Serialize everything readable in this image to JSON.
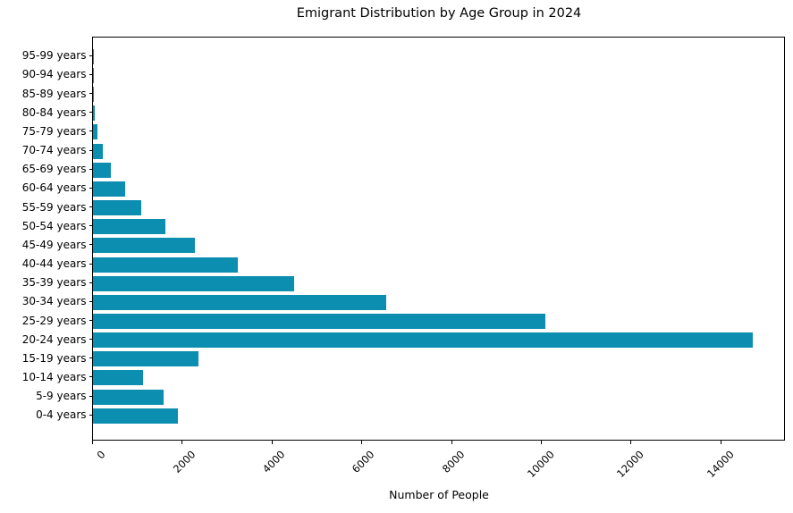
{
  "chart_data": {
    "type": "bar",
    "orientation": "horizontal",
    "title": "Emigrant Distribution by Age Group in 2024",
    "xlabel": "Number of People",
    "ylabel": "",
    "legend": "none",
    "grid": false,
    "bar_color": "#0c8eb0",
    "axis_color": "#000000",
    "xlim": [
      0,
      15430
    ],
    "x_ticks": [
      0,
      2000,
      4000,
      6000,
      8000,
      10000,
      12000,
      14000
    ],
    "x_tick_labels": [
      "0",
      "2000",
      "4000",
      "6000",
      "8000",
      "10000",
      "12000",
      "14000"
    ],
    "x_tick_rotation_deg": 45,
    "categories_top_to_bottom": [
      "95-99 years",
      "90-94 years",
      "85-89 years",
      "80-84 years",
      "75-79 years",
      "70-74 years",
      "65-69 years",
      "60-64 years",
      "55-59 years",
      "50-54 years",
      "45-49 years",
      "40-44 years",
      "35-39 years",
      "30-34 years",
      "25-29 years",
      "20-24 years",
      "15-19 years",
      "10-14 years",
      "5-9 years",
      "0-4 years"
    ],
    "values_top_to_bottom": [
      2,
      5,
      12,
      45,
      100,
      210,
      405,
      720,
      1070,
      1610,
      2270,
      3230,
      4490,
      6540,
      10080,
      14700,
      2350,
      1110,
      1570,
      1890
    ]
  }
}
